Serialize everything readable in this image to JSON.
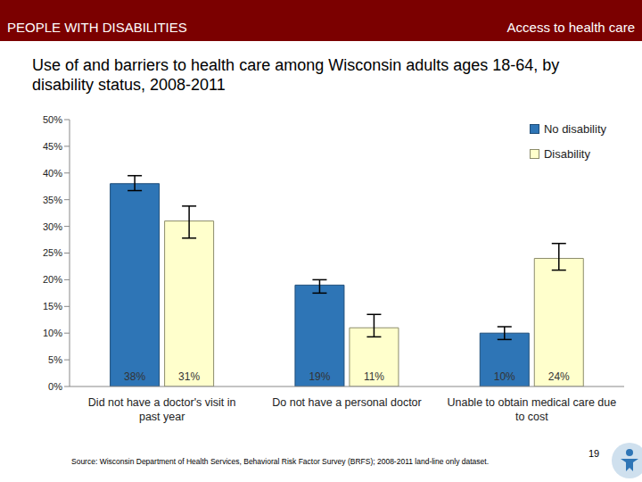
{
  "header_left": "PEOPLE WITH DISABILITIES",
  "header_right": "Access to health care",
  "source": "Source: Wisconsin Department of Health Services, Behavioral Risk Factor Survey (BRFS); 2008-2011 land-line only dataset.",
  "page_number": "19",
  "chart_data": {
    "type": "bar",
    "title": "Use of and barriers to health care among Wisconsin adults ages 18-64, by disability status, 2008-2011",
    "categories": [
      "Did not have a doctor's visit in past year",
      "Do not have a personal doctor",
      "Unable to obtain medical care due to cost"
    ],
    "series": [
      {
        "name": "No disability",
        "color": "#2E75B6",
        "values": [
          38,
          19,
          10
        ],
        "value_labels": [
          "38%",
          "19%",
          "10%"
        ],
        "ci": [
          [
            36.7,
            39.5
          ],
          [
            17.5,
            20
          ],
          [
            8.8,
            11.2
          ]
        ]
      },
      {
        "name": "Disability",
        "color": "#FFFFCC",
        "values": [
          31,
          11,
          24
        ],
        "value_labels": [
          "31%",
          "11%",
          "24%"
        ],
        "ci": [
          [
            27.8,
            33.8
          ],
          [
            9.3,
            13.5
          ],
          [
            21.8,
            26.8
          ]
        ]
      }
    ],
    "ylim": [
      0,
      50
    ],
    "yticks": [
      {
        "value": 0,
        "label": "0%"
      },
      {
        "value": 5,
        "label": "5%"
      },
      {
        "value": 10,
        "label": "10%"
      },
      {
        "value": 15,
        "label": "15%"
      },
      {
        "value": 20,
        "label": "20%"
      },
      {
        "value": 25,
        "label": "25%"
      },
      {
        "value": 30,
        "label": "30%"
      },
      {
        "value": 35,
        "label": "35%"
      },
      {
        "value": 40,
        "label": "40%"
      },
      {
        "value": 45,
        "label": "45%"
      },
      {
        "value": 50,
        "label": "50%"
      }
    ],
    "grid": false,
    "legend": "upper right",
    "data_labels": true
  }
}
